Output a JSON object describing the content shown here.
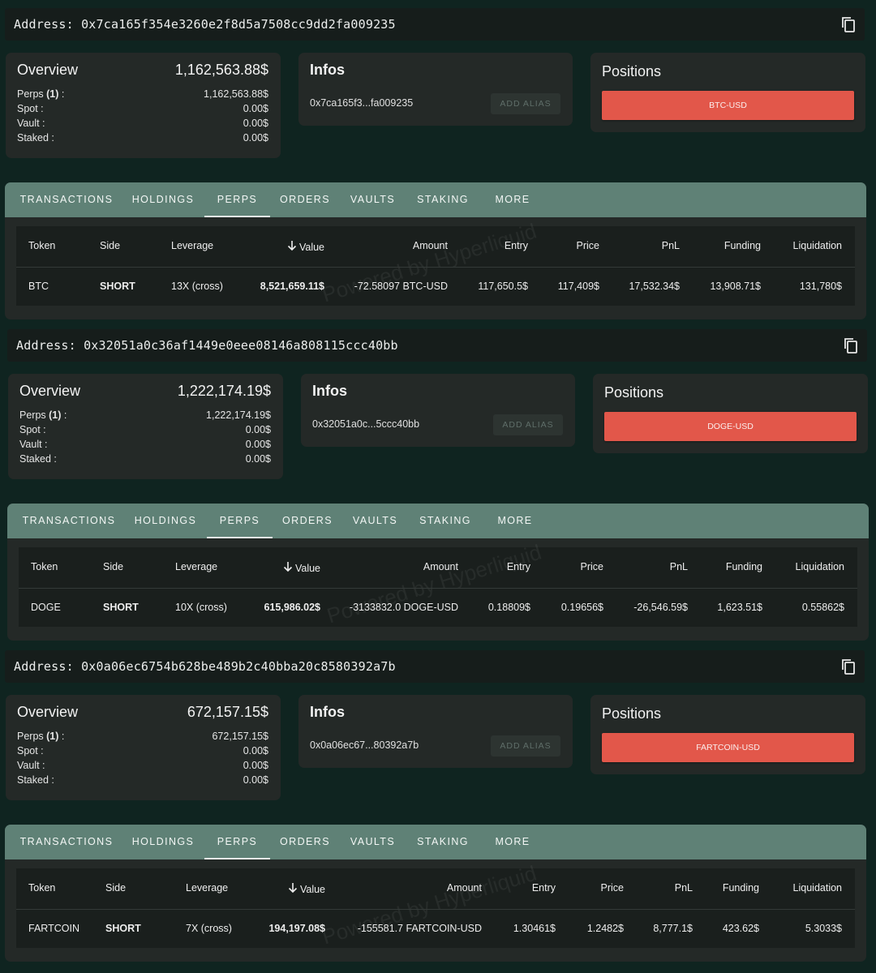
{
  "common": {
    "overview_title": "Overview",
    "infos_title": "Infos",
    "positions_title": "Positions",
    "add_alias_label": "ADD ALIAS",
    "overview_labels": {
      "perps": "Perps",
      "perps_count": "(1)",
      "perps_suffix": " :",
      "spot": "Spot :",
      "vault": "Vault :",
      "staked": "Staked :"
    },
    "tabs": [
      "TRANSACTIONS",
      "HOLDINGS",
      "PERPS",
      "ORDERS",
      "VAULTS",
      "STAKING",
      "MORE"
    ],
    "active_tab": "PERPS",
    "columns": [
      "Token",
      "Side",
      "Leverage",
      "Value",
      "Amount",
      "Entry",
      "Price",
      "PnL",
      "Funding",
      "Liquidation"
    ],
    "sort_icon": "arrow-down-icon",
    "watermark": "Powered by Hyperliquid",
    "colors": {
      "background": "#0f2420",
      "tab_bar": "#5f8176",
      "position_button": "#e2574a",
      "short": "#e24a3b",
      "positive": "#3d9a3a",
      "negative": "#e24a3b"
    }
  },
  "accounts": [
    {
      "address": "Address: 0x7ca165f354e3260e2f8d5a7508cc9dd2fa009235",
      "overview": {
        "total": "1,162,563.88$",
        "perps": "1,162,563.88$",
        "spot": "0.00$",
        "vault": "0.00$",
        "staked": "0.00$"
      },
      "infos": {
        "short_address": "0x7ca165f3...fa009235"
      },
      "position": "BTC-USD",
      "row": {
        "token": "BTC",
        "side": "SHORT",
        "leverage": "13X (cross)",
        "value": "8,521,659.11$",
        "amount": "-72.58097 BTC-USD",
        "entry": "117,650.5$",
        "price": "117,409$",
        "pnl": "17,532.34$",
        "pnl_sign": "positive",
        "funding": "13,908.71$",
        "funding_sign": "positive",
        "liquidation": "131,780$"
      }
    },
    {
      "address": "Address: 0x32051a0c36af1449e0eee08146a808115ccc40bb",
      "overview": {
        "total": "1,222,174.19$",
        "perps": "1,222,174.19$",
        "spot": "0.00$",
        "vault": "0.00$",
        "staked": "0.00$"
      },
      "infos": {
        "short_address": "0x32051a0c...5ccc40bb"
      },
      "position": "DOGE-USD",
      "row": {
        "token": "DOGE",
        "side": "SHORT",
        "leverage": "10X (cross)",
        "value": "615,986.02$",
        "amount": "-3133832.0 DOGE-USD",
        "entry": "0.18809$",
        "price": "0.19656$",
        "pnl": "-26,546.59$",
        "pnl_sign": "negative",
        "funding": "1,623.51$",
        "funding_sign": "positive",
        "liquidation": "0.55862$"
      }
    },
    {
      "address": "Address: 0x0a06ec6754b628be489b2c40bba20c8580392a7b",
      "overview": {
        "total": "672,157.15$",
        "perps": "672,157.15$",
        "spot": "0.00$",
        "vault": "0.00$",
        "staked": "0.00$"
      },
      "infos": {
        "short_address": "0x0a06ec67...80392a7b"
      },
      "position": "FARTCOIN-USD",
      "row": {
        "token": "FARTCOIN",
        "side": "SHORT",
        "leverage": "7X (cross)",
        "value": "194,197.08$",
        "amount": "-155581.7 FARTCOIN-USD",
        "entry": "1.30461$",
        "price": "1.2482$",
        "pnl": "8,777.1$",
        "pnl_sign": "positive",
        "funding": "423.62$",
        "funding_sign": "positive",
        "liquidation": "5.3033$"
      }
    }
  ]
}
